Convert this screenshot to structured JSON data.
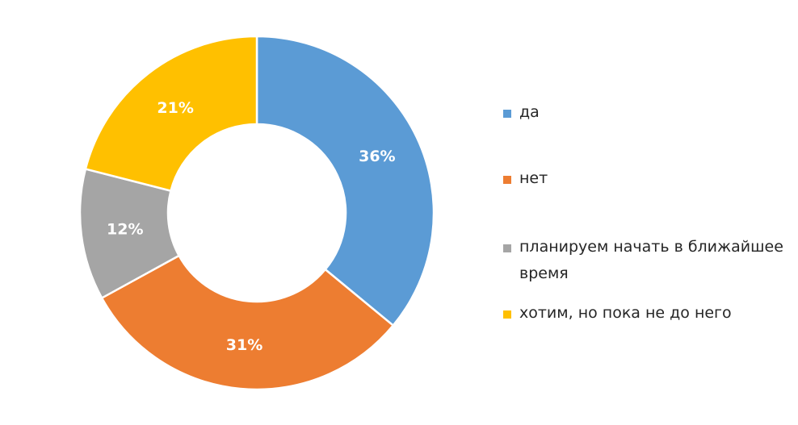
{
  "chart_data": {
    "type": "pie",
    "donut": true,
    "legend_position": "right",
    "categories": [
      "да",
      "нет",
      "планируем начать в ближайшее время",
      "хотим, но пока не до него"
    ],
    "values": [
      36,
      31,
      12,
      21
    ],
    "labels": [
      "36%",
      "31%",
      "12%",
      "21%"
    ],
    "colors": [
      "#5B9BD5",
      "#ED7D31",
      "#A5A5A5",
      "#FFC000"
    ]
  },
  "legend": {
    "items": [
      {
        "label": "да",
        "color": "#5B9BD5"
      },
      {
        "label": "нет",
        "color": "#ED7D31"
      },
      {
        "label": "планируем начать в ближайшее время",
        "color": "#A5A5A5"
      },
      {
        "label": "хотим, но пока не до него",
        "color": "#FFC000"
      }
    ]
  }
}
